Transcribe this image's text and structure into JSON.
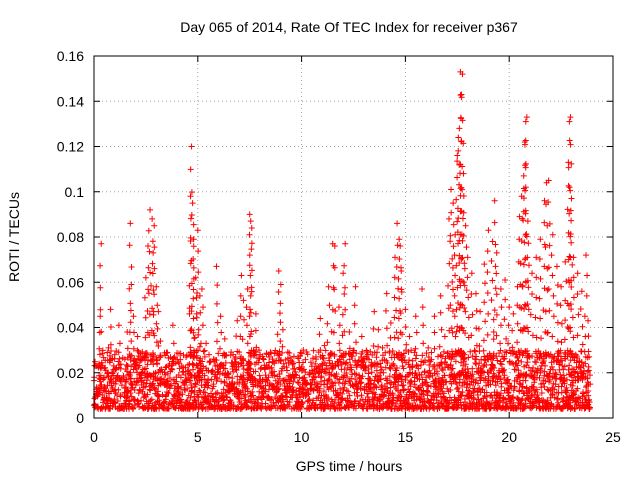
{
  "chart_data": {
    "type": "scatter",
    "title": "Day 065 of 2014, Rate Of TEC Index for receiver p367",
    "xlabel": "GPS time / hours",
    "ylabel": "ROTI / TECUs",
    "xlim": [
      0,
      25
    ],
    "ylim": [
      0,
      0.16
    ],
    "xticks": [
      0,
      5,
      10,
      15,
      20,
      25
    ],
    "xtick_labels": [
      "0",
      "5",
      "10",
      "15",
      "20",
      "25"
    ],
    "yticks": [
      0,
      0.02,
      0.04,
      0.06,
      0.08,
      0.1,
      0.12,
      0.14,
      0.16
    ],
    "ytick_labels": [
      "0",
      "0.02",
      "0.04",
      "0.06",
      "0.08",
      "0.1",
      "0.12",
      "0.14",
      "0.16"
    ],
    "grid": true,
    "marker": "+",
    "color": "#ff0000",
    "series": [
      {
        "name": "ROTI",
        "points": [
          [
            0.2,
            0.013
          ],
          [
            0.3,
            0.045
          ],
          [
            0.35,
            0.077
          ],
          [
            0.5,
            0.022
          ],
          [
            0.7,
            0.031
          ],
          [
            0.8,
            0.048
          ],
          [
            1.0,
            0.028
          ],
          [
            1.2,
            0.041
          ],
          [
            1.5,
            0.016
          ],
          [
            1.6,
            0.038
          ],
          [
            1.75,
            0.086
          ],
          [
            1.8,
            0.059
          ],
          [
            1.9,
            0.045
          ],
          [
            2.1,
            0.036
          ],
          [
            2.3,
            0.026
          ],
          [
            2.5,
            0.062
          ],
          [
            2.6,
            0.076
          ],
          [
            2.7,
            0.092
          ],
          [
            2.8,
            0.088
          ],
          [
            2.85,
            0.073
          ],
          [
            2.9,
            0.085
          ],
          [
            3.0,
            0.058
          ],
          [
            3.1,
            0.047
          ],
          [
            3.2,
            0.034
          ],
          [
            3.5,
            0.029
          ],
          [
            3.8,
            0.041
          ],
          [
            4.1,
            0.024
          ],
          [
            4.4,
            0.019
          ],
          [
            4.6,
            0.046
          ],
          [
            4.65,
            0.098
          ],
          [
            4.7,
            0.12
          ],
          [
            4.75,
            0.095
          ],
          [
            4.8,
            0.079
          ],
          [
            4.9,
            0.062
          ],
          [
            5.0,
            0.083
          ],
          [
            5.1,
            0.054
          ],
          [
            5.2,
            0.057
          ],
          [
            5.4,
            0.033
          ],
          [
            5.7,
            0.021
          ],
          [
            5.9,
            0.067
          ],
          [
            6.1,
            0.045
          ],
          [
            6.3,
            0.035
          ],
          [
            6.5,
            0.018
          ],
          [
            6.7,
            0.028
          ],
          [
            6.9,
            0.043
          ],
          [
            7.1,
            0.063
          ],
          [
            7.2,
            0.052
          ],
          [
            7.4,
            0.057
          ],
          [
            7.5,
            0.09
          ],
          [
            7.55,
            0.087
          ],
          [
            7.6,
            0.084
          ],
          [
            7.8,
            0.046
          ],
          [
            8.0,
            0.028
          ],
          [
            8.3,
            0.017
          ],
          [
            8.6,
            0.026
          ],
          [
            8.9,
            0.065
          ],
          [
            9.0,
            0.059
          ],
          [
            9.1,
            0.039
          ],
          [
            9.3,
            0.021
          ],
          [
            9.6,
            0.016
          ],
          [
            9.9,
            0.013
          ],
          [
            10.2,
            0.011
          ],
          [
            10.5,
            0.021
          ],
          [
            10.7,
            0.026
          ],
          [
            10.9,
            0.044
          ],
          [
            11.1,
            0.032
          ],
          [
            11.3,
            0.058
          ],
          [
            11.5,
            0.077
          ],
          [
            11.6,
            0.076
          ],
          [
            11.8,
            0.049
          ],
          [
            12.0,
            0.064
          ],
          [
            12.1,
            0.077
          ],
          [
            12.3,
            0.038
          ],
          [
            12.6,
            0.058
          ],
          [
            12.9,
            0.036
          ],
          [
            13.2,
            0.028
          ],
          [
            13.5,
            0.047
          ],
          [
            13.7,
            0.039
          ],
          [
            13.9,
            0.031
          ],
          [
            14.1,
            0.055
          ],
          [
            14.3,
            0.042
          ],
          [
            14.5,
            0.071
          ],
          [
            14.6,
            0.086
          ],
          [
            14.7,
            0.079
          ],
          [
            14.75,
            0.076
          ],
          [
            14.8,
            0.065
          ],
          [
            15.0,
            0.048
          ],
          [
            15.2,
            0.036
          ],
          [
            15.5,
            0.045
          ],
          [
            15.8,
            0.057
          ],
          [
            16.1,
            0.031
          ],
          [
            16.4,
            0.045
          ],
          [
            16.7,
            0.054
          ],
          [
            16.9,
            0.036
          ],
          [
            17.1,
            0.088
          ],
          [
            17.2,
            0.101
          ],
          [
            17.3,
            0.095
          ],
          [
            17.4,
            0.081
          ],
          [
            17.5,
            0.116
          ],
          [
            17.55,
            0.124
          ],
          [
            17.6,
            0.128
          ],
          [
            17.65,
            0.153
          ],
          [
            17.7,
            0.143
          ],
          [
            17.75,
            0.152
          ],
          [
            17.8,
            0.108
          ],
          [
            17.9,
            0.085
          ],
          [
            18.0,
            0.071
          ],
          [
            18.2,
            0.064
          ],
          [
            18.4,
            0.055
          ],
          [
            18.6,
            0.047
          ],
          [
            18.8,
            0.068
          ],
          [
            19.0,
            0.083
          ],
          [
            19.2,
            0.078
          ],
          [
            19.3,
            0.096
          ],
          [
            19.4,
            0.073
          ],
          [
            19.6,
            0.057
          ],
          [
            19.8,
            0.061
          ],
          [
            20.0,
            0.049
          ],
          [
            20.2,
            0.046
          ],
          [
            20.4,
            0.058
          ],
          [
            20.5,
            0.089
          ],
          [
            20.6,
            0.098
          ],
          [
            20.7,
            0.107
          ],
          [
            20.75,
            0.122
          ],
          [
            20.8,
            0.131
          ],
          [
            20.85,
            0.133
          ],
          [
            20.9,
            0.087
          ],
          [
            21.1,
            0.064
          ],
          [
            21.3,
            0.071
          ],
          [
            21.5,
            0.079
          ],
          [
            21.7,
            0.096
          ],
          [
            21.8,
            0.104
          ],
          [
            21.9,
            0.105
          ],
          [
            22.1,
            0.081
          ],
          [
            22.3,
            0.067
          ],
          [
            22.5,
            0.058
          ],
          [
            22.7,
            0.069
          ],
          [
            22.85,
            0.113
          ],
          [
            22.9,
            0.131
          ],
          [
            22.95,
            0.133
          ],
          [
            23.0,
            0.097
          ],
          [
            23.1,
            0.071
          ],
          [
            23.3,
            0.064
          ],
          [
            23.5,
            0.056
          ],
          [
            23.7,
            0.072
          ],
          [
            23.8,
            0.043
          ],
          [
            23.85,
            0.027
          ]
        ]
      }
    ],
    "baseline_noise": {
      "x_range": [
        0.0,
        23.9
      ],
      "typical_range": [
        0.004,
        0.03
      ],
      "description_count": 1
    }
  }
}
